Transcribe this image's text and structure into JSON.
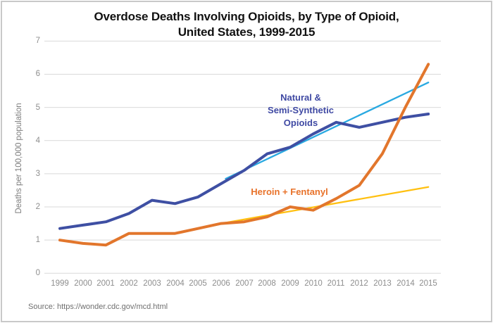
{
  "title": {
    "line1": "Overdose Deaths Involving Opioids, by Type of Opioid,",
    "line2": "United States, 1999-2015"
  },
  "y_axis": {
    "label": "Deaths per 100,000 population",
    "ticks": [
      "0",
      "1",
      "2",
      "3",
      "4",
      "5",
      "6",
      "7"
    ]
  },
  "x_axis": {
    "ticks": [
      "1999",
      "2000",
      "2001",
      "2002",
      "2003",
      "2004",
      "2005",
      "2006",
      "2007",
      "2008",
      "2009",
      "2010",
      "2011",
      "2012",
      "2013",
      "2014",
      "2015"
    ]
  },
  "annotations": {
    "natural_label_lines": [
      "Natural &",
      "Semi-Synthetic",
      "Opioids"
    ],
    "heroin_label": "Heroin + Fentanyl"
  },
  "source": "Source: https://wonder.cdc.gov/mcd.html",
  "colors": {
    "natural_line": "#3e4fa3",
    "natural_trend": "#29a9e1",
    "heroin_line": "#e2762c",
    "heroin_trend": "#ffc010",
    "gridline": "#d9d9d9",
    "axis_text": "#8e8e8e",
    "title_text": "#111111"
  },
  "chart_data": {
    "type": "line",
    "title": "Overdose Deaths Involving Opioids, by Type of Opioid, United States, 1999-2015",
    "xlabel": "",
    "ylabel": "Deaths per 100,000 population",
    "ylim": [
      0,
      7
    ],
    "grid": "horizontal",
    "legend": "inline-annotations",
    "categories": [
      1999,
      2000,
      2001,
      2002,
      2003,
      2004,
      2005,
      2006,
      2007,
      2008,
      2009,
      2010,
      2011,
      2012,
      2013,
      2014,
      2015
    ],
    "series": [
      {
        "name": "Natural & Semi-Synthetic Opioids",
        "color": "#3e4fa3",
        "width": 4,
        "values": [
          1.35,
          1.45,
          1.55,
          1.8,
          2.2,
          2.1,
          2.3,
          2.7,
          3.1,
          3.6,
          3.8,
          4.2,
          4.55,
          4.4,
          4.55,
          4.7,
          4.8
        ]
      },
      {
        "name": "Heroin + Fentanyl",
        "color": "#e2762c",
        "width": 4,
        "values": [
          1.0,
          0.9,
          0.85,
          1.2,
          1.2,
          1.2,
          1.35,
          1.5,
          1.55,
          1.7,
          2.0,
          1.9,
          2.25,
          2.65,
          3.6,
          5.0,
          6.3
        ]
      },
      {
        "name": "Natural & Semi-Synthetic Opioids linear trend",
        "color": "#29a9e1",
        "width": 2.3,
        "x": [
          2006.2,
          2015
        ],
        "values": [
          2.85,
          5.75
        ]
      },
      {
        "name": "Heroin + Fentanyl linear trend",
        "color": "#ffc010",
        "width": 2.3,
        "x": [
          2006,
          2015
        ],
        "values": [
          1.5,
          2.6
        ]
      }
    ]
  }
}
